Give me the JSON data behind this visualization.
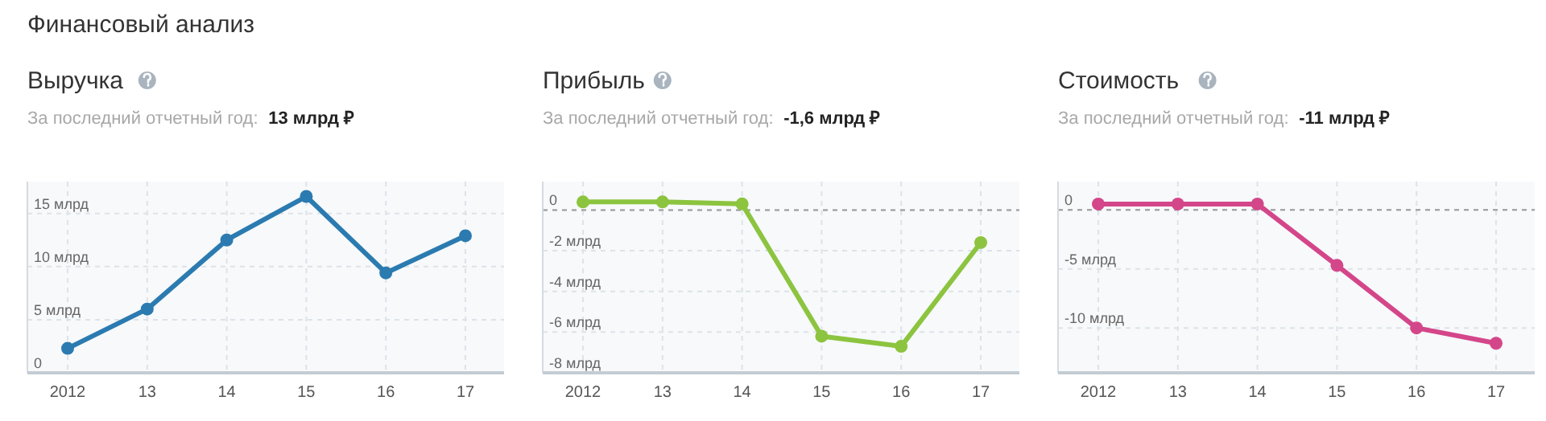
{
  "chart_data": [
    {
      "type": "other",
      "title": "Финансовый анализ"
    },
    {
      "type": "line",
      "title": "Выручка",
      "subtitle": "За последний отчетный год:",
      "annotations": [
        "13 млрд ₽"
      ],
      "categories": [
        "2012",
        "13",
        "14",
        "15",
        "16",
        "17"
      ],
      "series": [
        {
          "color": "#2b7bb0",
          "values": [
            2.3,
            6.0,
            12.5,
            16.6,
            9.4,
            12.9
          ]
        }
      ],
      "ylim": [
        0,
        18
      ],
      "yticks": [
        {
          "value": 0,
          "label": "0"
        },
        {
          "value": 5,
          "label": "5 млрд"
        },
        {
          "value": 10,
          "label": "10 млрд"
        },
        {
          "value": 15,
          "label": "15 млрд"
        }
      ],
      "grid": true,
      "marker": "circle",
      "line_style": "solid"
    },
    {
      "type": "line",
      "title": "Прибыль",
      "subtitle": "За последний отчетный год:",
      "annotations": [
        "-1,6 млрд ₽"
      ],
      "categories": [
        "2012",
        "13",
        "14",
        "15",
        "16",
        "17"
      ],
      "series": [
        {
          "color": "#8cc43f",
          "values": [
            0.4,
            0.4,
            0.3,
            -6.2,
            -6.7,
            -1.6
          ]
        }
      ],
      "ylim": [
        -8,
        1.4
      ],
      "yticks": [
        {
          "value": -8,
          "label": "-8 млрд"
        },
        {
          "value": -6,
          "label": "-6 млрд"
        },
        {
          "value": -4,
          "label": "-4 млрд"
        },
        {
          "value": -2,
          "label": "-2 млрд"
        },
        {
          "value": 0,
          "label": "0"
        }
      ],
      "grid": true,
      "marker": "circle",
      "line_style": "solid",
      "ref_lines": [
        {
          "axis": "y",
          "value": 0,
          "color": "#9a9a9a",
          "line_style": "dashed"
        }
      ]
    },
    {
      "type": "line",
      "title": "Стоимость",
      "subtitle": "За последний отчетный год:",
      "annotations": [
        "-11 млрд ₽"
      ],
      "categories": [
        "2012",
        "13",
        "14",
        "15",
        "16",
        "17"
      ],
      "series": [
        {
          "color": "#d4468a",
          "values": [
            0.5,
            0.5,
            0.5,
            -4.7,
            -10.0,
            -11.3
          ]
        }
      ],
      "ylim": [
        -13.8,
        2.4
      ],
      "yticks": [
        {
          "value": -10,
          "label": "-10 млрд"
        },
        {
          "value": -5,
          "label": "-5 млрд"
        },
        {
          "value": 0,
          "label": "0"
        }
      ],
      "grid": true,
      "marker": "circle",
      "line_style": "solid",
      "ref_lines": [
        {
          "axis": "y",
          "value": 0,
          "color": "#9a9a9a",
          "line_style": "dashed"
        }
      ]
    }
  ]
}
